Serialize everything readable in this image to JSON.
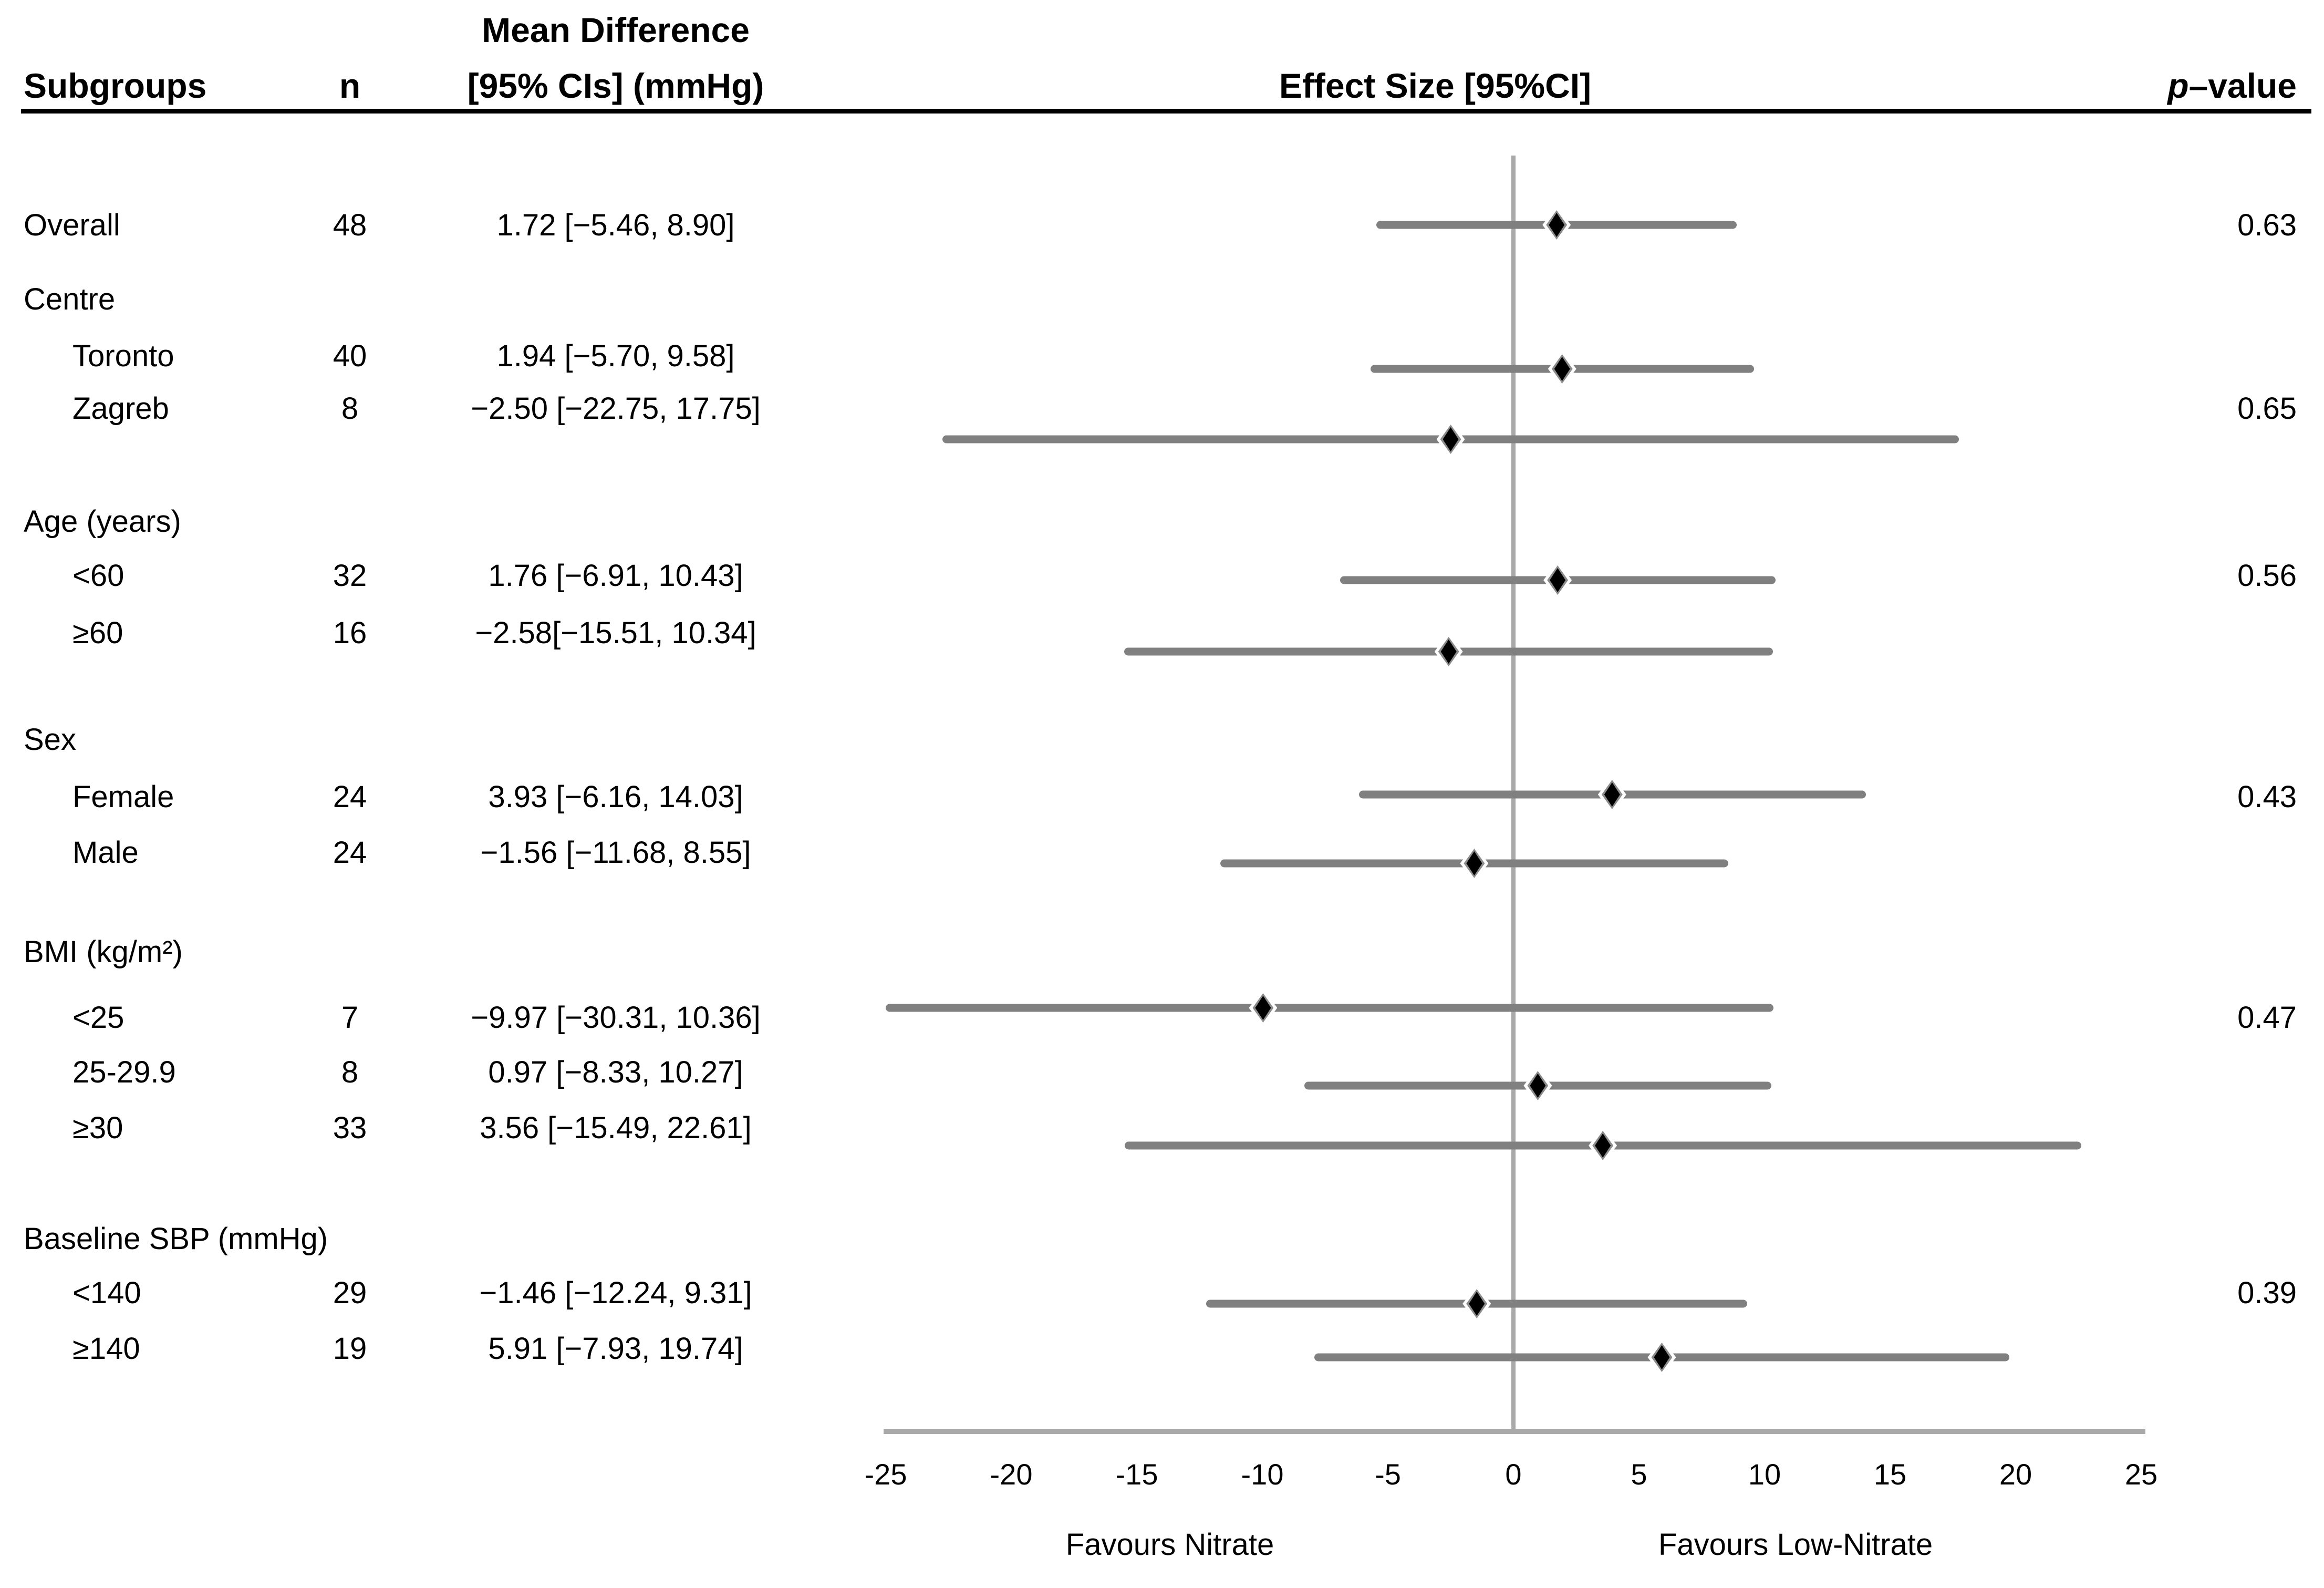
{
  "figure": {
    "header": {
      "subgroups": "Subgroups",
      "n": "n",
      "mean_diff_line1": "Mean Difference",
      "mean_diff_line2": "[95% CIs] (mmHg)",
      "effect_size": "Effect Size [95%CI]",
      "p_italic": "p",
      "p_rest": "–value"
    },
    "footer": {
      "favours_left": "Favours Nitrate",
      "favours_right": "Favours Low-Nitrate"
    },
    "colors": {
      "bar": "#808080",
      "axis_line": "#a9a9a9",
      "marker": "#000000",
      "text": "#000000",
      "background": "#ffffff"
    }
  },
  "chart_data": {
    "type": "scatter",
    "variant": "forest-plot",
    "title": "",
    "xlabel": "Effect Size [95%CI]",
    "ylabel": "",
    "xlim": [
      -25,
      25
    ],
    "x_tick_values": [
      -25,
      -20,
      -15,
      -10,
      -5,
      0,
      5,
      10,
      15,
      20,
      25
    ],
    "x_tick_labels": [
      "-25",
      "-20",
      "-15",
      "-10",
      "-5",
      "0",
      "5",
      "10",
      "15",
      "20",
      "25"
    ],
    "zero_line_x": 0,
    "grid": false,
    "legend": "none",
    "favours_left": "Favours Nitrate",
    "favours_right": "Favours Low-Nitrate",
    "rows": [
      {
        "id": "overall",
        "label": "Overall",
        "level": 0,
        "group": false,
        "n": "48",
        "ci_text": "1.72 [−5.46, 8.90]",
        "p": "0.63",
        "mean": 1.72,
        "lo": -5.46,
        "hi": 8.9
      },
      {
        "id": "centre",
        "label": "Centre",
        "level": 0,
        "group": true
      },
      {
        "id": "toronto",
        "label": "Toronto",
        "level": 1,
        "group": false,
        "n": "40",
        "ci_text": "1.94 [−5.70, 9.58]",
        "mean": 1.94,
        "lo": -5.7,
        "hi": 9.58
      },
      {
        "id": "zagreb",
        "label": "Zagreb",
        "level": 1,
        "group": false,
        "n": "8",
        "ci_text": "−2.50 [−22.75, 17.75]",
        "p": "0.65",
        "mean": -2.5,
        "lo": -22.75,
        "hi": 17.75
      },
      {
        "id": "age",
        "label": "Age (years)",
        "level": 0,
        "group": true
      },
      {
        "id": "lt60",
        "label": "<60",
        "level": 1,
        "group": false,
        "n": "32",
        "ci_text": "1.76 [−6.91, 10.43]",
        "p": "0.56",
        "mean": 1.76,
        "lo": -6.91,
        "hi": 10.43
      },
      {
        "id": "ge60",
        "label": "≥60",
        "level": 1,
        "group": false,
        "n": "16",
        "ci_text": "−2.58[−15.51, 10.34]",
        "mean": -2.58,
        "lo": -15.51,
        "hi": 10.34
      },
      {
        "id": "sex",
        "label": "Sex",
        "level": 0,
        "group": true
      },
      {
        "id": "female",
        "label": "Female",
        "level": 1,
        "group": false,
        "n": "24",
        "ci_text": "3.93 [−6.16, 14.03]",
        "p": "0.43",
        "mean": 3.93,
        "lo": -6.16,
        "hi": 14.03
      },
      {
        "id": "male",
        "label": "Male",
        "level": 1,
        "group": false,
        "n": "24",
        "ci_text": "−1.56 [−11.68, 8.55]",
        "mean": -1.56,
        "lo": -11.68,
        "hi": 8.55
      },
      {
        "id": "bmi",
        "label": "BMI (kg/m²)",
        "level": 0,
        "group": true
      },
      {
        "id": "lt25",
        "label": "<25",
        "level": 1,
        "group": false,
        "n": "7",
        "ci_text": "−9.97 [−30.31, 10.36]",
        "p": "0.47",
        "mean": -9.97,
        "lo": -30.31,
        "hi": 10.36
      },
      {
        "id": "b2529",
        "label": "25-29.9",
        "level": 1,
        "group": false,
        "n": "8",
        "ci_text": "0.97 [−8.33, 10.27]",
        "mean": 0.97,
        "lo": -8.33,
        "hi": 10.27
      },
      {
        "id": "ge30",
        "label": "≥30",
        "level": 1,
        "group": false,
        "n": "33",
        "ci_text": "3.56 [−15.49, 22.61]",
        "mean": 3.56,
        "lo": -15.49,
        "hi": 22.61
      },
      {
        "id": "sbp",
        "label": "Baseline SBP (mmHg)",
        "level": 0,
        "group": true
      },
      {
        "id": "lt140",
        "label": "<140",
        "level": 1,
        "group": false,
        "n": "29",
        "ci_text": "−1.46 [−12.24, 9.31]",
        "p": "0.39",
        "mean": -1.46,
        "lo": -12.24,
        "hi": 9.31
      },
      {
        "id": "ge140",
        "label": "≥140",
        "level": 1,
        "group": false,
        "n": "19",
        "ci_text": "5.91 [−7.93, 19.74]",
        "mean": 5.91,
        "lo": -7.93,
        "hi": 19.74
      }
    ]
  }
}
